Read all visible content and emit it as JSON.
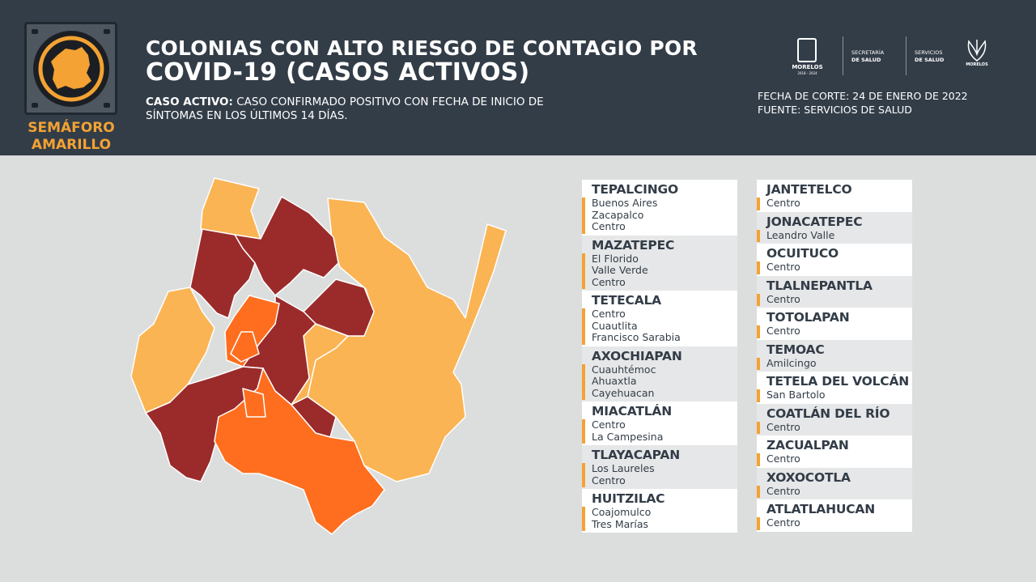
{
  "header": {
    "title_line1": "COLONIAS CON ALTO RIESGO DE CONTAGIO POR",
    "title_line2": "COVID-19 (CASOS ACTIVOS)",
    "definition_label": "CASO ACTIVO:",
    "definition_text": " CASO CONFIRMADO POSITIVO CON FECHA DE INICIO DE SÍNTOMAS EN LOS ÚLTIMOS 14 DÍAS.",
    "semaforo_line1": "SEMÁFORO",
    "semaforo_line2": "AMARILLO",
    "fecha_corte": "FECHA DE CORTE: 24 DE ENERO DE 2022",
    "fuente": "FUENTE: SERVICIOS DE SALUD"
  },
  "logos": {
    "morelos": "MORELOS",
    "morelos_years": "2018 - 2024",
    "secretaria_line1": "SECRETARÍA",
    "secretaria_line2": "DE SALUD",
    "servicios_line1": "SERVICIOS",
    "servicios_line2": "DE SALUD",
    "flower_text": "MORELOS"
  },
  "colors": {
    "header_bg": "#333d48",
    "semaforo_amarillo": "#f3a233",
    "risk_low": "#fbb453",
    "risk_medium": "#fe6e1e",
    "risk_high": "#9b2b2b"
  },
  "municipios_left": [
    {
      "name": "TEPALCINGO",
      "colonias": [
        "Buenos Aires",
        "Zacapalco",
        "Centro"
      ]
    },
    {
      "name": "MAZATEPEC",
      "colonias": [
        "El Florido",
        "Valle Verde",
        "Centro"
      ]
    },
    {
      "name": "TETECALA",
      "colonias": [
        "Centro",
        "Cuautlita",
        "Francisco Sarabia"
      ]
    },
    {
      "name": "AXOCHIAPAN",
      "colonias": [
        "Cuauhtémoc",
        "Ahuaxtla",
        "Cayehuacan"
      ]
    },
    {
      "name": "MIACATLÁN",
      "colonias": [
        "Centro",
        "La Campesina"
      ]
    },
    {
      "name": "TLAYACAPAN",
      "colonias": [
        "Los Laureles",
        "Centro"
      ]
    },
    {
      "name": "HUITZILAC",
      "colonias": [
        "Coajomulco",
        "Tres Marías"
      ]
    }
  ],
  "municipios_right": [
    {
      "name": "JANTETELCO",
      "colonias": [
        "Centro"
      ]
    },
    {
      "name": "JONACATEPEC",
      "colonias": [
        "Leandro Valle"
      ]
    },
    {
      "name": "OCUITUCO",
      "colonias": [
        "Centro"
      ]
    },
    {
      "name": "TLALNEPANTLA",
      "colonias": [
        "Centro"
      ]
    },
    {
      "name": "TOTOLAPAN",
      "colonias": [
        "Centro"
      ]
    },
    {
      "name": "TEMOAC",
      "colonias": [
        "Amilcingo"
      ]
    },
    {
      "name": "TETELA DEL VOLCÁN",
      "colonias": [
        "San Bartolo"
      ]
    },
    {
      "name": "COATLÁN DEL RÍO",
      "colonias": [
        "Centro"
      ]
    },
    {
      "name": "ZACUALPAN",
      "colonias": [
        "Centro"
      ]
    },
    {
      "name": "XOXOCOTLA",
      "colonias": [
        "Centro"
      ]
    },
    {
      "name": "ATLATLAHUCAN",
      "colonias": [
        "Centro"
      ]
    }
  ]
}
